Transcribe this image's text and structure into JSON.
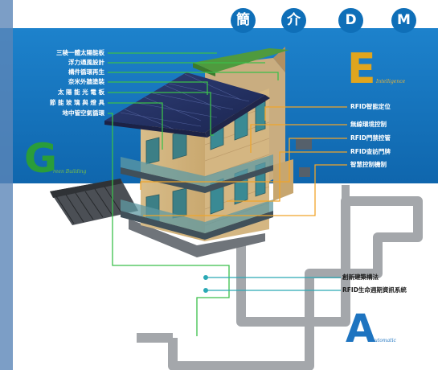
{
  "header": {
    "chars": [
      "簡",
      "介",
      "D",
      "M"
    ]
  },
  "left_labels": [
    "三稜一體太陽能板",
    "浮力通風設計",
    "構件循環再生",
    "奈米外牆塗裝",
    "太 陽 能 光 電 板",
    "節 能 玻 璃 與 燈 具",
    "地中管空氣循環"
  ],
  "right_labels": [
    "RFID智能定位",
    "無線環境控制",
    "RFID門禁控管",
    "RFID查訪門牌",
    "智慧控制機制"
  ],
  "lower_labels": [
    "創新建築構法",
    "RFID生命週期資訊系統"
  ],
  "letters": {
    "G": {
      "letter": "G",
      "subtitle": "reen Building",
      "color": "#2a9d3a"
    },
    "E": {
      "letter": "E",
      "subtitle": "Intelligence",
      "color": "#e0a51e"
    },
    "A": {
      "letter": "A",
      "subtitle": "utomatic",
      "color": "#1e74c0"
    }
  },
  "colors": {
    "blue_band": "#1676c0",
    "green_line": "#3bbf4a",
    "orange_line": "#f0a52a",
    "teal_line": "#2aa9b5",
    "pipe": "#a4a7ab"
  }
}
